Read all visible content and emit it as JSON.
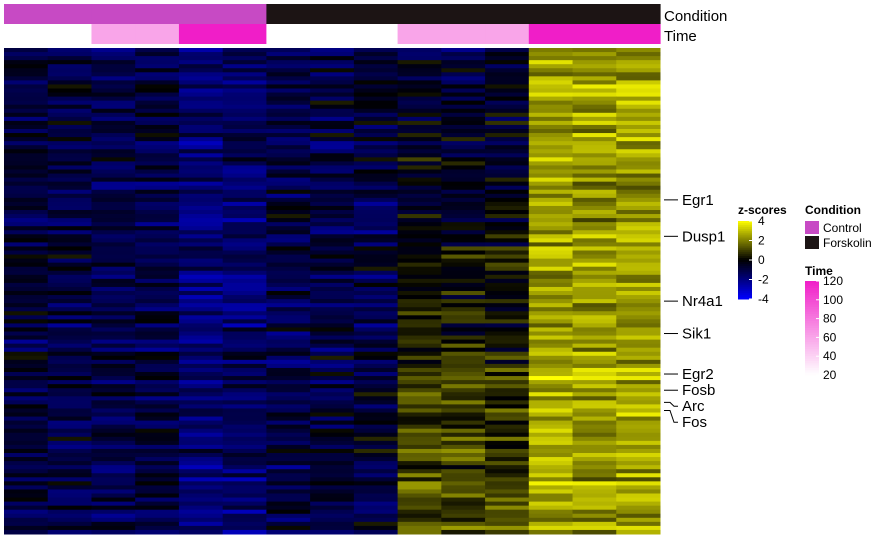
{
  "chart_data": {
    "type": "heatmap",
    "n_rows": 120,
    "columns": [
      {
        "condition": "Control",
        "time": 20
      },
      {
        "condition": "Control",
        "time": 20
      },
      {
        "condition": "Control",
        "time": 60
      },
      {
        "condition": "Control",
        "time": 60
      },
      {
        "condition": "Control",
        "time": 120
      },
      {
        "condition": "Control",
        "time": 120
      },
      {
        "condition": "Forskolin",
        "time": 20
      },
      {
        "condition": "Forskolin",
        "time": 20
      },
      {
        "condition": "Forskolin",
        "time": 20
      },
      {
        "condition": "Forskolin",
        "time": 60
      },
      {
        "condition": "Forskolin",
        "time": 60
      },
      {
        "condition": "Forskolin",
        "time": 60
      },
      {
        "condition": "Forskolin",
        "time": 120
      },
      {
        "condition": "Forskolin",
        "time": 120
      },
      {
        "condition": "Forskolin",
        "time": 120
      }
    ],
    "column_trend": [
      -0.9,
      -1.0,
      -1.1,
      -1.0,
      -1.7,
      -1.5,
      -0.9,
      -1.0,
      -0.9,
      0.4,
      0.3,
      0.2,
      2.6,
      2.4,
      2.6
    ],
    "row_labels": [
      {
        "label": "Egr1",
        "row": 37
      },
      {
        "label": "Dusp1",
        "row": 46
      },
      {
        "label": "Nr4a1",
        "row": 62
      },
      {
        "label": "Sik1",
        "row": 70
      },
      {
        "label": "Egr2",
        "row": 80
      },
      {
        "label": "Fosb",
        "row": 84
      },
      {
        "label": "Arc",
        "row": 87
      },
      {
        "label": "Fos",
        "row": 89
      }
    ],
    "annotation_labels": {
      "condition": "Condition",
      "time": "Time"
    },
    "zscore_legend": {
      "title": "z-scores",
      "ticks": [
        4,
        2,
        0,
        -2,
        -4
      ],
      "range": [
        -4,
        4
      ],
      "colors": [
        "#0000ff",
        "#000000",
        "#ffff00"
      ]
    },
    "condition_legend": {
      "title": "Condition",
      "items": [
        {
          "label": "Control",
          "color": "#c74ac4"
        },
        {
          "label": "Forskolin",
          "color": "#1c1414"
        }
      ]
    },
    "time_legend": {
      "title": "Time",
      "ticks": [
        120,
        100,
        80,
        60,
        40,
        20
      ],
      "range": [
        20,
        120
      ],
      "colors": [
        "#ffffff",
        "#f01ec8"
      ]
    }
  }
}
